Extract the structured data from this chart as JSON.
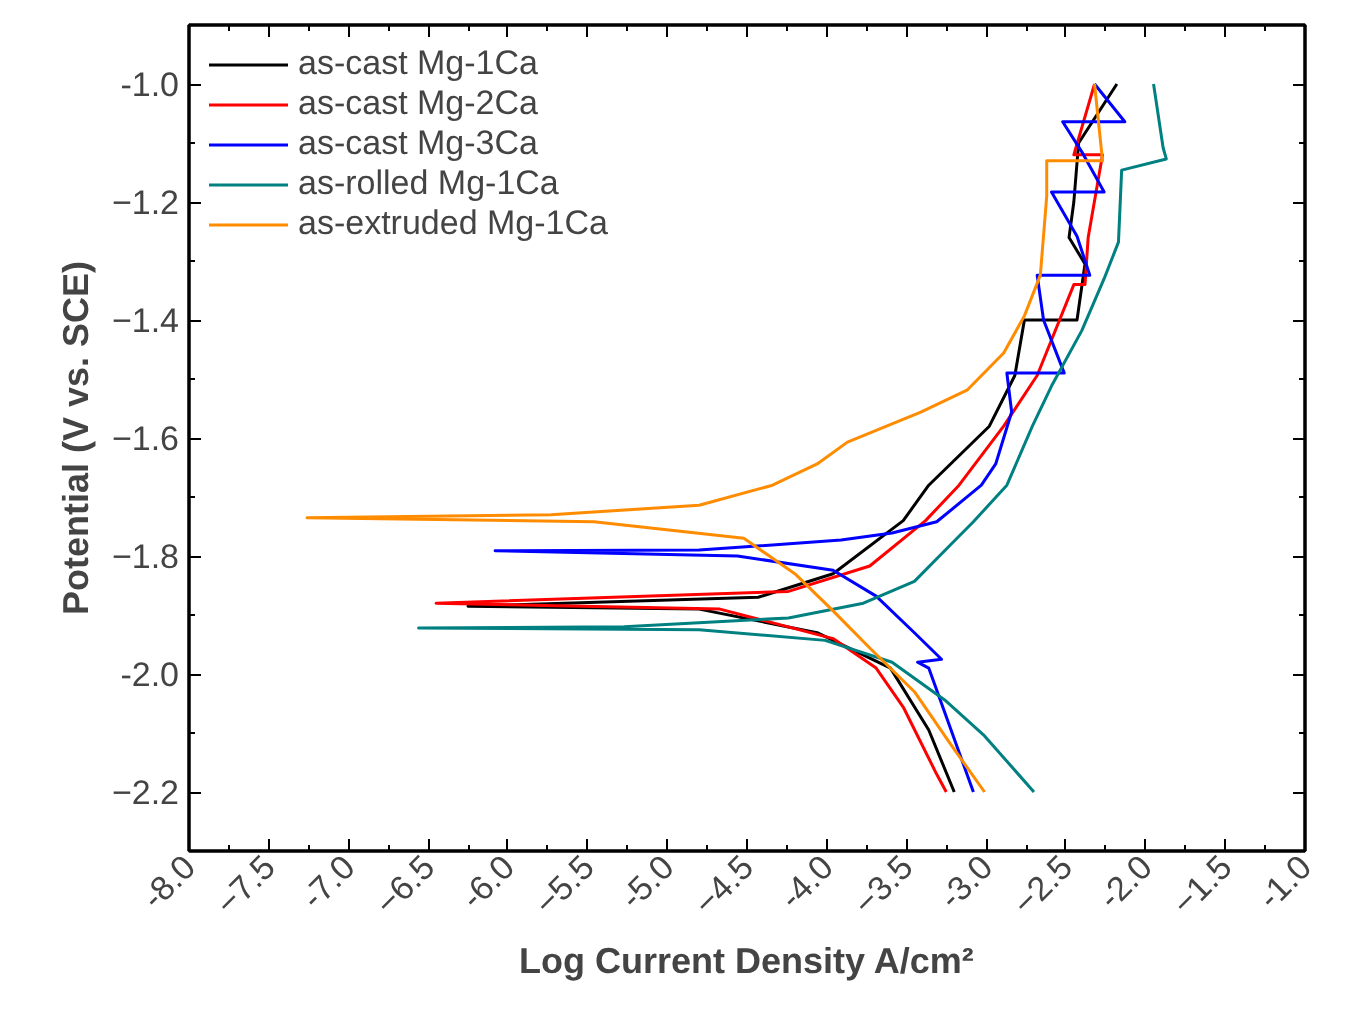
{
  "chart_data": {
    "type": "line",
    "xlabel": "Log Current Density A/cm²",
    "ylabel": "Potential (V vs. SCE)",
    "xlim": [
      -8.0,
      -1.0
    ],
    "xticks": [
      {
        "value": -8.0,
        "label": "-8.0"
      },
      -7.5,
      {
        "value": -7.0,
        "label": "-7.0"
      },
      -6.5,
      {
        "value": -6.0,
        "label": "-6.0"
      },
      -5.5,
      {
        "value": -5.0,
        "label": "-5.0"
      },
      -4.5,
      {
        "value": -4.0,
        "label": "-4.0"
      },
      -3.5,
      {
        "value": -3.0,
        "label": "-3.0"
      },
      -2.5,
      {
        "value": -2.0,
        "label": "-2.0"
      },
      -1.5,
      {
        "value": -1.0,
        "label": "-1.0"
      }
    ],
    "ylim": [
      -2.3,
      -0.9
    ],
    "yticks": [
      -2.2,
      {
        "value": -2.0,
        "label": "-2.0"
      },
      -1.8,
      -1.6,
      -1.4,
      -1.2,
      {
        "value": -1.0,
        "label": "-1.0"
      }
    ],
    "grid": false,
    "legend": "top left",
    "marker": "none",
    "line_style": "solid",
    "series": [
      {
        "name": "as-cast Mg-1Ca",
        "color": "#000000",
        "x": [
          -3.2,
          -3.36,
          -3.6,
          -4.06,
          -4.8,
          -6.25,
          -4.43,
          -3.96,
          -3.52,
          -3.36,
          -2.98,
          -2.82,
          -2.76,
          -2.43,
          -2.38,
          -2.48,
          -2.45,
          -2.42,
          -2.18
        ],
        "values": [
          -2.2,
          -2.095,
          -1.99,
          -1.93,
          -1.89,
          -1.885,
          -1.87,
          -1.83,
          -1.74,
          -1.68,
          -1.58,
          -1.494,
          -1.4,
          -1.4,
          -1.305,
          -1.26,
          -1.2,
          -1.1,
          -1.0
        ]
      },
      {
        "name": "as-cast Mg-2Ca",
        "color": "#ff0000",
        "x": [
          -3.25,
          -3.31,
          -3.52,
          -3.69,
          -3.96,
          -4.67,
          -6.45,
          -4.24,
          -3.73,
          -3.38,
          -3.17,
          -2.89,
          -2.68,
          -2.45,
          -2.38,
          -2.36,
          -2.27,
          -2.45,
          -2.32
        ],
        "values": [
          -2.2,
          -2.17,
          -2.056,
          -1.99,
          -1.94,
          -1.89,
          -1.88,
          -1.86,
          -1.817,
          -1.74,
          -1.68,
          -1.58,
          -1.494,
          -1.34,
          -1.34,
          -1.26,
          -1.12,
          -1.12,
          -1.0
        ]
      },
      {
        "name": "as-cast Mg-3Ca",
        "color": "#0000ff",
        "x": [
          -3.08,
          -3.36,
          -3.43,
          -3.28,
          -3.45,
          -3.69,
          -3.96,
          -4.56,
          -6.08,
          -4.8,
          -3.91,
          -3.59,
          -3.31,
          -3.03,
          -2.94,
          -2.84,
          -2.87,
          -2.51,
          -2.64,
          -2.68,
          -2.35,
          -2.43,
          -2.59,
          -2.26,
          -2.4,
          -2.52,
          -2.13,
          -2.32
        ],
        "values": [
          -2.2,
          -1.99,
          -1.98,
          -1.975,
          -1.93,
          -1.868,
          -1.824,
          -1.8,
          -1.791,
          -1.79,
          -1.773,
          -1.761,
          -1.742,
          -1.68,
          -1.644,
          -1.556,
          -1.49,
          -1.49,
          -1.4,
          -1.324,
          -1.324,
          -1.258,
          -1.183,
          -1.183,
          -1.115,
          -1.064,
          -1.064,
          -1.0
        ]
      },
      {
        "name": "as-rolled Mg-1Ca",
        "color": "#008080",
        "x": [
          -2.7,
          -3.01,
          -3.26,
          -3.59,
          -4.01,
          -4.8,
          -6.56,
          -5.27,
          -4.24,
          -3.77,
          -3.45,
          -3.22,
          -3.08,
          -2.87,
          -2.71,
          -2.59,
          -2.4,
          -2.26,
          -2.17,
          -2.15,
          -1.87,
          -1.89,
          -1.95
        ],
        "values": [
          -2.2,
          -2.105,
          -2.044,
          -1.98,
          -1.943,
          -1.925,
          -1.922,
          -1.92,
          -1.905,
          -1.88,
          -1.843,
          -1.78,
          -1.742,
          -1.68,
          -1.58,
          -1.512,
          -1.418,
          -1.33,
          -1.268,
          -1.146,
          -1.127,
          -1.108,
          -1.0
        ]
      },
      {
        "name": "as-extruded Mg-1Ca",
        "color": "#ff8c00",
        "x": [
          -3.01,
          -3.22,
          -3.45,
          -3.73,
          -3.96,
          -4.2,
          -4.52,
          -5.46,
          -7.26,
          -5.73,
          -4.8,
          -4.34,
          -4.06,
          -3.87,
          -3.41,
          -3.12,
          -2.89,
          -2.76,
          -2.66,
          -2.62,
          -2.62,
          -2.27,
          -2.32
        ],
        "values": [
          -2.2,
          -2.12,
          -2.03,
          -1.956,
          -1.893,
          -1.83,
          -1.77,
          -1.742,
          -1.735,
          -1.73,
          -1.714,
          -1.68,
          -1.644,
          -1.607,
          -1.556,
          -1.519,
          -1.456,
          -1.393,
          -1.324,
          -1.19,
          -1.13,
          -1.13,
          -1.0
        ]
      }
    ]
  }
}
